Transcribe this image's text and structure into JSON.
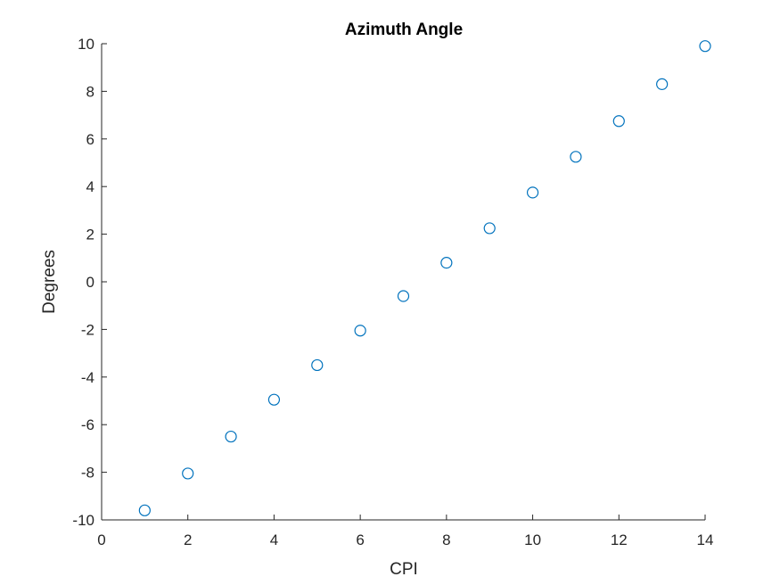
{
  "chart_data": {
    "type": "scatter",
    "title": "Azimuth Angle",
    "xlabel": "CPI",
    "ylabel": "Degrees",
    "xlim": [
      0,
      14
    ],
    "ylim": [
      -10,
      10
    ],
    "xticks": [
      0,
      2,
      4,
      6,
      8,
      10,
      12,
      14
    ],
    "yticks": [
      -10,
      -8,
      -6,
      -4,
      -2,
      0,
      2,
      4,
      6,
      8,
      10
    ],
    "grid": false,
    "marker": "open-circle",
    "marker_color": "#0072bd",
    "series": [
      {
        "x": [
          1,
          2,
          3,
          4,
          5,
          6,
          7,
          8,
          9,
          10,
          11,
          12,
          13,
          14
        ],
        "y": [
          -9.6,
          -8.05,
          -6.5,
          -4.95,
          -3.5,
          -2.05,
          -0.6,
          0.8,
          2.25,
          3.75,
          5.25,
          6.75,
          8.3,
          9.9
        ]
      }
    ]
  }
}
